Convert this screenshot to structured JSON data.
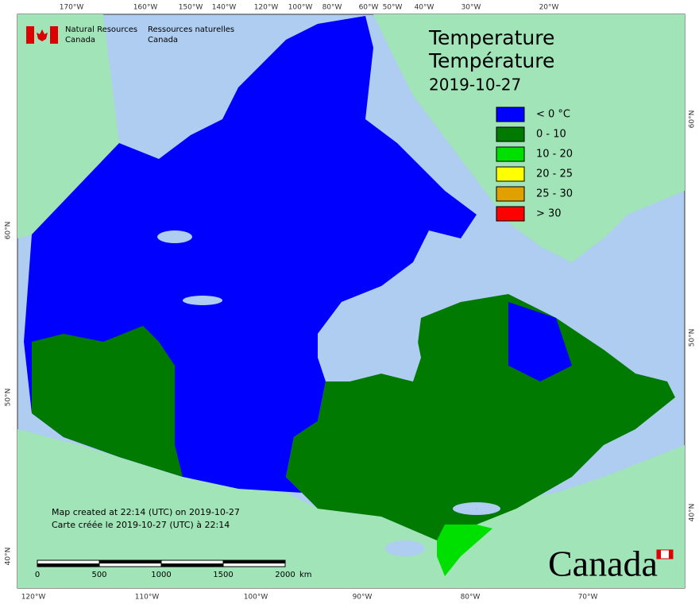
{
  "header": {
    "org_en": "Natural Resources",
    "org_en_2": "Canada",
    "org_fr": "Ressources naturelles",
    "org_fr_2": "Canada"
  },
  "title": [
    "Temperature",
    "Température",
    "2019-10-27"
  ],
  "legend": [
    {
      "label": "< 0 °C",
      "color": "#0000ff"
    },
    {
      "label": "0 - 10",
      "color": "#007a00"
    },
    {
      "label": "10 - 20",
      "color": "#00e000"
    },
    {
      "label": "20 - 25",
      "color": "#ffff00"
    },
    {
      "label": "25 - 30",
      "color": "#e0a000"
    },
    {
      "label": "> 30",
      "color": "#ff0000"
    }
  ],
  "notes": [
    "Map created at 22:14 (UTC) on 2019-10-27",
    "Carte créée le 2019-10-27 (UTC) à 22:14"
  ],
  "scale_bar": {
    "ticks": [
      0,
      500,
      1000,
      1500,
      2000
    ],
    "unit": "km"
  },
  "graticule": {
    "top": [
      "170°W",
      "160°W",
      "150°W",
      "140°W",
      "120°W",
      "100°W",
      "80°W",
      "60°W",
      "50°W",
      "40°W",
      "30°W",
      "20°W"
    ],
    "bottom": [
      "120°W",
      "110°W",
      "100°W",
      "90°W",
      "80°W",
      "70°W"
    ],
    "left": [
      "60°N",
      "50°N",
      "40°N"
    ],
    "right": [
      "60°N",
      "50°N",
      "40°N"
    ]
  },
  "wordmark": "Canada"
}
